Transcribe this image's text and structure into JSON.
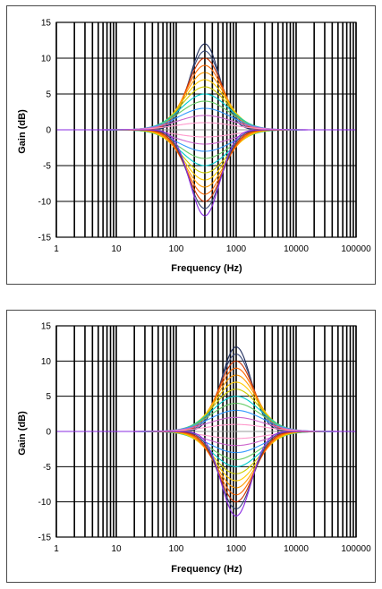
{
  "chart_data": [
    {
      "type": "line",
      "title": "",
      "xlabel": "Frequency (Hz)",
      "ylabel": "Gain (dB)",
      "x_scale": "log",
      "xlim": [
        1,
        100000
      ],
      "ylim": [
        -15,
        15
      ],
      "x_ticks": [
        "1",
        "10",
        "100",
        "1000",
        "10000",
        "100000"
      ],
      "y_ticks": [
        "15",
        "10",
        "5",
        "0",
        "-5",
        "-10",
        "-15"
      ],
      "grid": true,
      "legend": "none",
      "center_frequency_hz": 300,
      "series": [
        {
          "color": "#1f2d5c",
          "peak_gain_db": 12
        },
        {
          "color": "#3b4a7a",
          "peak_gain_db": 11
        },
        {
          "color": "#cc3300",
          "peak_gain_db": 10
        },
        {
          "color": "#ff6600",
          "peak_gain_db": 9
        },
        {
          "color": "#ff9900",
          "peak_gain_db": 8
        },
        {
          "color": "#ffcc00",
          "peak_gain_db": 7
        },
        {
          "color": "#cccc00",
          "peak_gain_db": 6
        },
        {
          "color": "#00cccc",
          "peak_gain_db": 5
        },
        {
          "color": "#66cc66",
          "peak_gain_db": 4
        },
        {
          "color": "#3399ff",
          "peak_gain_db": 3
        },
        {
          "color": "#cc66cc",
          "peak_gain_db": 2
        },
        {
          "color": "#ff99cc",
          "peak_gain_db": 1
        },
        {
          "color": "#999999",
          "peak_gain_db": 0
        },
        {
          "color": "#ff99cc",
          "peak_gain_db": -1
        },
        {
          "color": "#cc66cc",
          "peak_gain_db": -2
        },
        {
          "color": "#3399ff",
          "peak_gain_db": -3
        },
        {
          "color": "#66cc66",
          "peak_gain_db": -4
        },
        {
          "color": "#00cccc",
          "peak_gain_db": -5
        },
        {
          "color": "#cccc00",
          "peak_gain_db": -6
        },
        {
          "color": "#ffcc00",
          "peak_gain_db": -7
        },
        {
          "color": "#ff9900",
          "peak_gain_db": -8
        },
        {
          "color": "#ff6600",
          "peak_gain_db": -9
        },
        {
          "color": "#cc3300",
          "peak_gain_db": -10
        },
        {
          "color": "#3b4a7a",
          "peak_gain_db": -11
        },
        {
          "color": "#8a2be2",
          "peak_gain_db": -12
        }
      ]
    },
    {
      "type": "line",
      "title": "",
      "xlabel": "Frequency (Hz)",
      "ylabel": "Gain (dB)",
      "x_scale": "log",
      "xlim": [
        1,
        100000
      ],
      "ylim": [
        -15,
        15
      ],
      "x_ticks": [
        "1",
        "10",
        "100",
        "1000",
        "10000",
        "100000"
      ],
      "y_ticks": [
        "15",
        "10",
        "5",
        "0",
        "-5",
        "-10",
        "-15"
      ],
      "grid": true,
      "legend": "none",
      "center_frequency_hz": 1000,
      "series": [
        {
          "color": "#1f2d5c",
          "peak_gain_db": 12
        },
        {
          "color": "#3b4a7a",
          "peak_gain_db": 11
        },
        {
          "color": "#cc3300",
          "peak_gain_db": 10
        },
        {
          "color": "#ff6600",
          "peak_gain_db": 9
        },
        {
          "color": "#ff9900",
          "peak_gain_db": 8
        },
        {
          "color": "#ffcc00",
          "peak_gain_db": 7
        },
        {
          "color": "#cccc00",
          "peak_gain_db": 6
        },
        {
          "color": "#00cccc",
          "peak_gain_db": 5
        },
        {
          "color": "#66cc66",
          "peak_gain_db": 4
        },
        {
          "color": "#3399ff",
          "peak_gain_db": 3
        },
        {
          "color": "#cc66cc",
          "peak_gain_db": 2
        },
        {
          "color": "#ff99cc",
          "peak_gain_db": 1
        },
        {
          "color": "#999999",
          "peak_gain_db": 0
        },
        {
          "color": "#ff99cc",
          "peak_gain_db": -1
        },
        {
          "color": "#cc66cc",
          "peak_gain_db": -2
        },
        {
          "color": "#3399ff",
          "peak_gain_db": -3
        },
        {
          "color": "#66cc66",
          "peak_gain_db": -4
        },
        {
          "color": "#00cccc",
          "peak_gain_db": -5
        },
        {
          "color": "#cccc00",
          "peak_gain_db": -6
        },
        {
          "color": "#ffcc00",
          "peak_gain_db": -7
        },
        {
          "color": "#ff9900",
          "peak_gain_db": -8
        },
        {
          "color": "#ff6600",
          "peak_gain_db": -9
        },
        {
          "color": "#cc3300",
          "peak_gain_db": -10
        },
        {
          "color": "#3b4a7a",
          "peak_gain_db": -11
        },
        {
          "color": "#8a2be2",
          "peak_gain_db": -12
        }
      ]
    }
  ]
}
